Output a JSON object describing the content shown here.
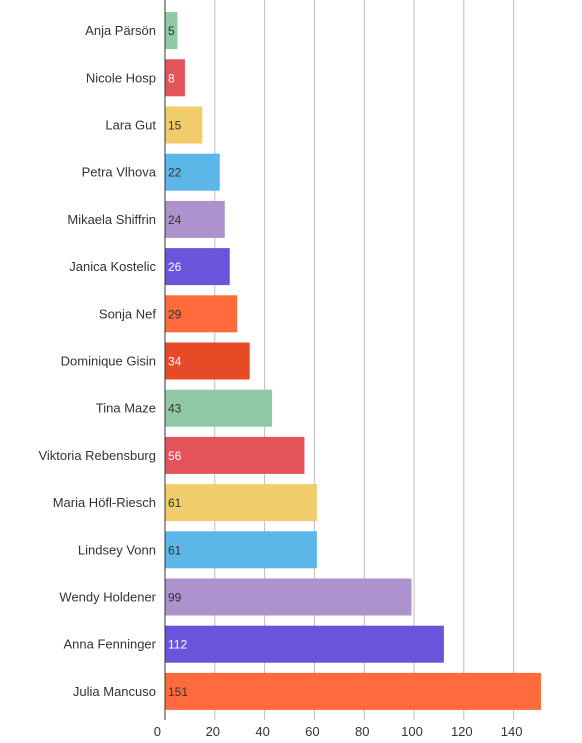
{
  "chart_data": {
    "type": "bar",
    "orientation": "horizontal",
    "title": "",
    "xlabel": "",
    "ylabel": "",
    "categories": [
      "Anja Pärsön",
      "Nicole Hosp",
      "Lara Gut",
      "Petra Vlhova",
      "Mikaela Shiffrin",
      "Janica Kostelic",
      "Sonja Nef",
      "Dominique Gisin",
      "Tina Maze",
      "Viktoria Rebensburg",
      "Maria Höfl-Riesch",
      "Lindsey Vonn",
      "Wendy Holdener",
      "Anna Fenninger",
      "Julia Mancuso"
    ],
    "values": [
      5,
      8,
      15,
      22,
      24,
      26,
      29,
      34,
      43,
      56,
      61,
      61,
      99,
      112,
      151
    ],
    "value_labels": [
      "5",
      "8",
      "15",
      "22",
      "24",
      "26",
      "29",
      "34",
      "43",
      "56",
      "61",
      "61",
      "99",
      "112",
      "151"
    ],
    "colors": [
      "#8fc9a3",
      "#e2535a",
      "#f0cc6b",
      "#5cb6e8",
      "#ad92cd",
      "#6b53dc",
      "#ff6b3d",
      "#e64a27",
      "#8fc9a3",
      "#e2535a",
      "#f0cc6b",
      "#5cb6e8",
      "#ad92cd",
      "#6b53dc",
      "#ff6b3d"
    ],
    "label_colors": [
      "#333333",
      "#ffffff",
      "#333333",
      "#333333",
      "#333333",
      "#ffffff",
      "#333333",
      "#ffffff",
      "#333333",
      "#ffffff",
      "#333333",
      "#333333",
      "#333333",
      "#ffffff",
      "#333333"
    ],
    "x_ticks": [
      0,
      20,
      40,
      60,
      80,
      100,
      120,
      140
    ],
    "x_tick_labels": [
      "0",
      "20",
      "40",
      "60",
      "80",
      "100",
      "120",
      "140"
    ],
    "xlim": [
      0,
      151
    ],
    "grid": true,
    "legend": "none"
  }
}
